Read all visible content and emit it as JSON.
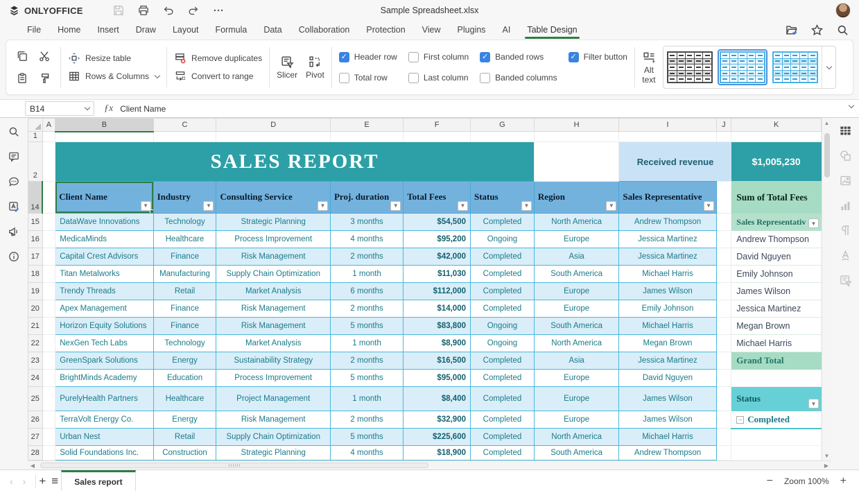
{
  "window": {
    "app_name": "ONLYOFFICE",
    "title": "Sample Spreadsheet.xlsx"
  },
  "menu": {
    "tabs": [
      "File",
      "Home",
      "Insert",
      "Draw",
      "Layout",
      "Formula",
      "Data",
      "Collaboration",
      "Protection",
      "View",
      "Plugins",
      "AI",
      "Table Design"
    ],
    "active_tab": "Table Design"
  },
  "ribbon": {
    "resize_table": "Resize table",
    "rows_columns": "Rows & Columns",
    "remove_duplicates": "Remove duplicates",
    "convert_to_range": "Convert to range",
    "slicer": "Slicer",
    "pivot": "Pivot",
    "alt_text_line1": "Alt",
    "alt_text_line2": "text",
    "checkboxes": [
      {
        "label": "Header row",
        "checked": true
      },
      {
        "label": "Total row",
        "checked": false
      },
      {
        "label": "First column",
        "checked": false
      },
      {
        "label": "Last column",
        "checked": false
      },
      {
        "label": "Banded rows",
        "checked": true
      },
      {
        "label": "Banded columns",
        "checked": false
      },
      {
        "label": "Filter button",
        "checked": true
      }
    ]
  },
  "formula_bar": {
    "name_box": "B14",
    "fx": "ƒx",
    "value": "Client Name"
  },
  "grid": {
    "column_letters": [
      "A",
      "B",
      "C",
      "D",
      "E",
      "F",
      "G",
      "H",
      "I",
      "J",
      "K"
    ],
    "selected_column": "B",
    "selected_row": 14,
    "visible_row_numbers": [
      1,
      2,
      14,
      15,
      16,
      17,
      18,
      19,
      20,
      21,
      22,
      23,
      24,
      25,
      26,
      27,
      28
    ]
  },
  "sheet": {
    "banner_title": "SALES REPORT",
    "received_revenue_label": "Received revenue",
    "received_revenue_value": "$1,005,230",
    "table": {
      "headers": [
        "Client Name",
        "Industry",
        "Consulting Service",
        "Proj. duration",
        "Total Fees",
        "Status",
        "Region",
        "Sales Representative"
      ],
      "rows": [
        [
          "DataWave Innovations",
          "Technology",
          "Strategic Planning",
          "3 months",
          "$54,500",
          "Completed",
          "North America",
          "Andrew Thompson"
        ],
        [
          "MedicaMinds",
          "Healthcare",
          "Process Improvement",
          "4 months",
          "$95,200",
          "Ongoing",
          "Europe",
          "Jessica Martinez"
        ],
        [
          "Capital Crest Advisors",
          "Finance",
          "Risk Management",
          "2 months",
          "$42,000",
          "Completed",
          "Asia",
          "Jessica Martinez"
        ],
        [
          "Titan Metalworks",
          "Manufacturing",
          "Supply Chain Optimization",
          "1 month",
          "$11,030",
          "Completed",
          "South America",
          "Michael Harris"
        ],
        [
          "Trendy Threads",
          "Retail",
          "Market Analysis",
          "6 months",
          "$112,000",
          "Completed",
          "Europe",
          "James Wilson"
        ],
        [
          "Apex Management",
          "Finance",
          "Risk Management",
          "2 months",
          "$14,000",
          "Completed",
          "Europe",
          "Emily Johnson"
        ],
        [
          "Horizon Equity Solutions",
          "Finance",
          "Risk Management",
          "5 months",
          "$83,800",
          "Ongoing",
          "South America",
          "Michael Harris"
        ],
        [
          "NexGen Tech Labs",
          "Technology",
          "Market Analysis",
          "1 month",
          "$8,900",
          "Ongoing",
          "North America",
          "Megan Brown"
        ],
        [
          "GreenSpark Solutions",
          "Energy",
          "Sustainability Strategy",
          "2 months",
          "$16,500",
          "Completed",
          "Asia",
          "Jessica Martinez"
        ],
        [
          "BrightMinds Academy",
          "Education",
          "Process Improvement",
          "5 months",
          "$95,000",
          "Completed",
          "Europe",
          "David Nguyen"
        ],
        [
          "PurelyHealth Partners",
          "Healthcare",
          "Project Management",
          "1 month",
          "$8,400",
          "Completed",
          "Europe",
          "James Wilson"
        ],
        [
          "TerraVolt Energy Co.",
          "Energy",
          "Risk Management",
          "2 months",
          "$32,900",
          "Completed",
          "Europe",
          "James Wilson"
        ],
        [
          "Urban Nest",
          "Retail",
          "Supply Chain Optimization",
          "5 months",
          "$225,600",
          "Completed",
          "North America",
          "Michael Harris"
        ],
        [
          "Solid Foundations Inc.",
          "Construction",
          "Strategic Planning",
          "4 months",
          "$18,900",
          "Completed",
          "South America",
          "Andrew Thompson"
        ]
      ]
    },
    "pivot": {
      "title": "Sum of Total Fees",
      "field_header": "Sales Representativ",
      "items": [
        "Andrew Thompson",
        "David Nguyen",
        "Emily Johnson",
        "James Wilson",
        "Jessica Martinez",
        "Megan Brown",
        "Michael Harris"
      ],
      "grand_total": "Grand Total"
    },
    "slicer": {
      "title": "Status",
      "item": "Completed"
    }
  },
  "status_bar": {
    "sheet_tab": "Sales report",
    "zoom_label": "Zoom 100%"
  },
  "colors": {
    "teal": "#2CA0A6",
    "header_blue": "#74B2DE",
    "band_blue": "#D9EEF9",
    "table_border": "#49B8DB",
    "accent_green": "#2E7D46",
    "checkbox_blue": "#3983E3",
    "pivot_green": "#A6DCC3",
    "slicer_teal": "#67D0D6",
    "received_bg": "#CAE2F5"
  },
  "icons": [
    "onlyoffice-logo",
    "save",
    "print",
    "undo",
    "redo",
    "more",
    "user-avatar",
    "open-file-location",
    "favorite-star",
    "search",
    "copy",
    "cut",
    "paste",
    "format-painter",
    "resize-table",
    "rows-columns",
    "remove-duplicates",
    "convert-to-range",
    "slicer",
    "pivot",
    "alt-text",
    "table-style-preview",
    "comments",
    "chat",
    "spellcheck",
    "feedback",
    "about",
    "table-settings",
    "shape-settings",
    "image-settings",
    "chart-settings",
    "paragraph-settings",
    "text-art-settings",
    "slicer-settings",
    "previous-sheet",
    "next-sheet",
    "add-sheet",
    "sheet-list",
    "zoom-out",
    "zoom-in",
    "filter-dropdown"
  ]
}
